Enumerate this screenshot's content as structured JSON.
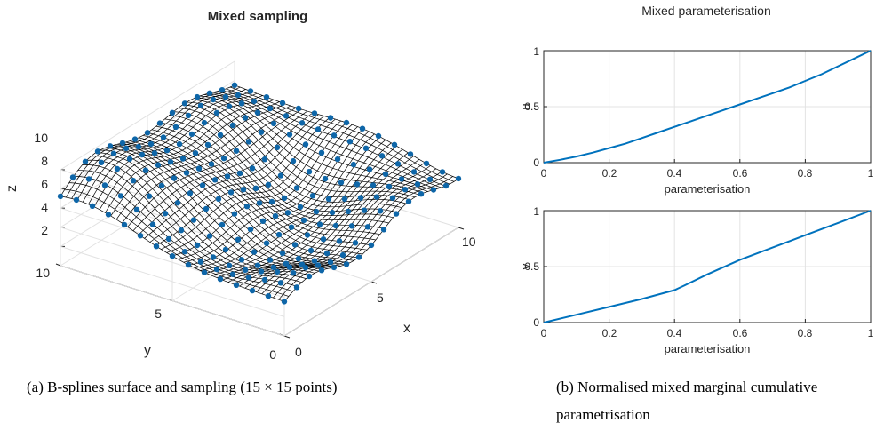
{
  "chart_data": [
    {
      "type": "surface",
      "title": "Mixed sampling",
      "xlabel": "x",
      "ylabel": "y",
      "zlabel": "z",
      "xlim": [
        0,
        10
      ],
      "ylim": [
        0,
        10
      ],
      "zlim": [
        0,
        10
      ],
      "xticks": [
        0,
        5,
        10
      ],
      "yticks": [
        0,
        5,
        10
      ],
      "zticks": [
        2,
        4,
        6,
        8,
        10
      ],
      "grid": true,
      "sample_grid": [
        15,
        15
      ],
      "surface_color": "#000000",
      "point_color": "#0e66a8",
      "caption": "(a) B-splines surface and sampling (15 × 15 points)"
    },
    {
      "type": "line",
      "title": "Mixed parameterisation",
      "xlabel": "parameterisation",
      "ylabel": "u",
      "xlim": [
        0,
        1
      ],
      "ylim": [
        0,
        1
      ],
      "xticks": [
        "0",
        "0.2",
        "0.4",
        "0.6",
        "0.8",
        "1"
      ],
      "yticks": [
        "0",
        "0.5",
        "1"
      ],
      "grid": true,
      "color": "#0072bd",
      "x": [
        0,
        0.05,
        0.1,
        0.15,
        0.2,
        0.25,
        0.3,
        0.35,
        0.4,
        0.45,
        0.5,
        0.55,
        0.6,
        0.65,
        0.7,
        0.75,
        0.8,
        0.85,
        0.9,
        0.95,
        1
      ],
      "y": [
        0,
        0.025,
        0.055,
        0.09,
        0.13,
        0.17,
        0.22,
        0.27,
        0.32,
        0.37,
        0.42,
        0.47,
        0.52,
        0.57,
        0.62,
        0.67,
        0.73,
        0.79,
        0.86,
        0.93,
        1
      ]
    },
    {
      "type": "line",
      "xlabel": "parameterisation",
      "ylabel": "v",
      "xlim": [
        0,
        1
      ],
      "ylim": [
        0,
        1
      ],
      "xticks": [
        "0",
        "0.2",
        "0.4",
        "0.6",
        "0.8",
        "1"
      ],
      "yticks": [
        "0",
        "0.5",
        "1"
      ],
      "grid": true,
      "color": "#0072bd",
      "caption": "(b) Normalised mixed marginal cumulative parametrisation",
      "caption_lines": [
        "(b) Normalised mixed marginal cumulative",
        "parametrisation"
      ],
      "x": [
        0,
        0.1,
        0.2,
        0.3,
        0.35,
        0.4,
        0.43,
        0.5,
        0.6,
        0.7,
        0.8,
        0.9,
        1
      ],
      "y": [
        0,
        0.07,
        0.14,
        0.21,
        0.25,
        0.29,
        0.33,
        0.43,
        0.56,
        0.67,
        0.78,
        0.89,
        1
      ]
    }
  ]
}
